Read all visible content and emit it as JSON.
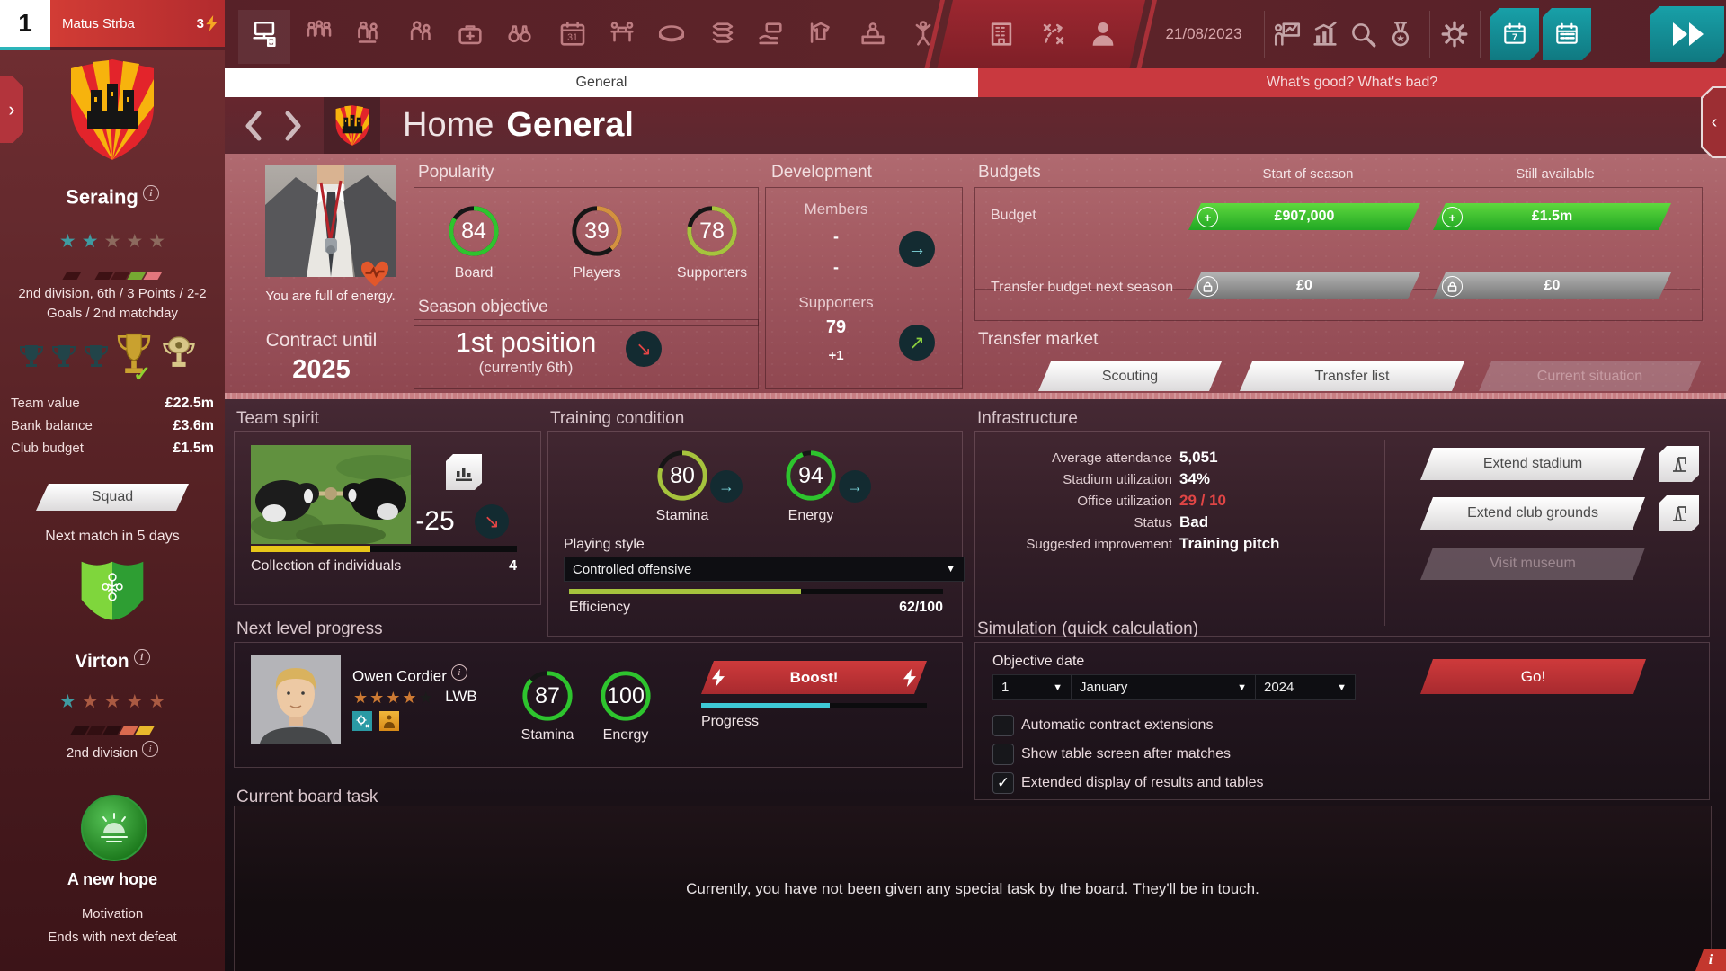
{
  "topbar": {
    "rank": "1",
    "manager_name": "Matus Strba",
    "energy_count": "3",
    "date": "21/08/2023",
    "icons": [
      "office",
      "training",
      "squad",
      "staff",
      "medical",
      "scouting",
      "calendar",
      "negotiations",
      "stadium",
      "finances",
      "sponsors",
      "fan-shop",
      "press",
      "fans",
      "club",
      "tactics",
      "profile",
      "analysis",
      "statistics",
      "search",
      "achievements",
      "settings"
    ],
    "time_buttons": [
      "advance-day",
      "advance-week",
      "continue"
    ]
  },
  "tabs": {
    "general": "General",
    "whats_good": "What's good? What's bad?"
  },
  "title": {
    "section": "Home",
    "page": "General"
  },
  "sidebar": {
    "club_name": "Seraing",
    "club_stars": {
      "filled": 2,
      "total": 5
    },
    "division_info_line1": "2nd division, 6th / 3 Points / 2-2",
    "division_info_line2": "Goals / 2nd matchday",
    "finance_rows": [
      {
        "label": "Team value",
        "value": "£22.5m"
      },
      {
        "label": "Bank balance",
        "value": "£3.6m"
      },
      {
        "label": "Club budget",
        "value": "£1.5m"
      }
    ],
    "squad_button": "Squad",
    "next_match": "Next match in 5 days",
    "opponent_name": "Virton",
    "opponent_stars": {
      "filled": 1,
      "total": 5
    },
    "opponent_division": "2nd division",
    "motivation_title": "A new hope",
    "motivation_label": "Motivation",
    "motivation_note": "Ends with next defeat"
  },
  "coach": {
    "status": "You are full of energy.",
    "contract_label": "Contract until",
    "contract_year": "2025"
  },
  "popularity": {
    "header": "Popularity",
    "gauges": [
      {
        "label": "Board",
        "value": 84,
        "color": "#2ec42e"
      },
      {
        "label": "Players",
        "value": 39,
        "color": "#d3913f"
      },
      {
        "label": "Supporters",
        "value": 78,
        "color": "#a6c33d"
      }
    ]
  },
  "season_objective": {
    "header": "Season objective",
    "target": "1st position",
    "current": "(currently 6th)"
  },
  "development": {
    "header": "Development",
    "members_label": "Members",
    "members_value": "-",
    "members_value_secondary": "-",
    "supporters_label": "Supporters",
    "supporters_value": "79",
    "supporters_delta": "+1"
  },
  "budgets": {
    "header": "Budgets",
    "col_start": "Start of season",
    "col_available": "Still available",
    "rows": [
      {
        "label": "Budget",
        "start": "£907,000",
        "available": "£1.5m"
      },
      {
        "label": "Transfer budget next season",
        "start": "£0",
        "available": "£0"
      }
    ]
  },
  "transfer_market": {
    "header": "Transfer market",
    "buttons": [
      "Scouting",
      "Transfer list",
      "Current situation"
    ]
  },
  "team_spirit": {
    "header": "Team spirit",
    "delta": "-25",
    "description": "Collection of individuals",
    "level": "4",
    "bar_pct": 45
  },
  "training": {
    "header": "Training condition",
    "gauges": [
      {
        "label": "Stamina",
        "value": 80,
        "color": "#a6c33d"
      },
      {
        "label": "Energy",
        "value": 94,
        "color": "#2ec42e"
      }
    ],
    "playing_style_label": "Playing style",
    "playing_style_value": "Controlled offensive",
    "efficiency_label": "Efficiency",
    "efficiency_text": "62/100",
    "efficiency_pct": 62
  },
  "infrastructure": {
    "header": "Infrastructure",
    "rows": [
      {
        "label": "Average attendance",
        "value": "5,051"
      },
      {
        "label": "Stadium utilization",
        "value": "34%"
      },
      {
        "label": "Office utilization",
        "value": "29 / 10"
      },
      {
        "label": "Status",
        "value": "Bad"
      },
      {
        "label": "Suggested improvement",
        "value": "Training pitch"
      }
    ],
    "buttons": [
      "Extend stadium",
      "Extend club grounds",
      "Visit museum"
    ]
  },
  "next_level": {
    "header": "Next level progress",
    "player_name": "Owen Cordier",
    "position": "LWB",
    "stars": {
      "filled": 4,
      "total": 5
    },
    "gauges": [
      {
        "label": "Stamina",
        "value": 87,
        "color": "#2ec42e"
      },
      {
        "label": "Energy",
        "value": 100,
        "color": "#2ec42e"
      }
    ],
    "boost_button": "Boost!",
    "progress_label": "Progress",
    "progress_pct": 57
  },
  "simulation": {
    "header": "Simulation (quick calculation)",
    "objective_date_label": "Objective date",
    "day": "1",
    "month": "January",
    "year": "2024",
    "go_button": "Go!",
    "checkboxes": [
      {
        "label": "Automatic contract extensions",
        "checked": false
      },
      {
        "label": "Show table screen after matches",
        "checked": false
      },
      {
        "label": "Extended display of results and tables",
        "checked": true
      }
    ]
  },
  "board_task": {
    "header": "Current board task",
    "message": "Currently, you have not been given any special task by the board. They'll be in touch."
  }
}
